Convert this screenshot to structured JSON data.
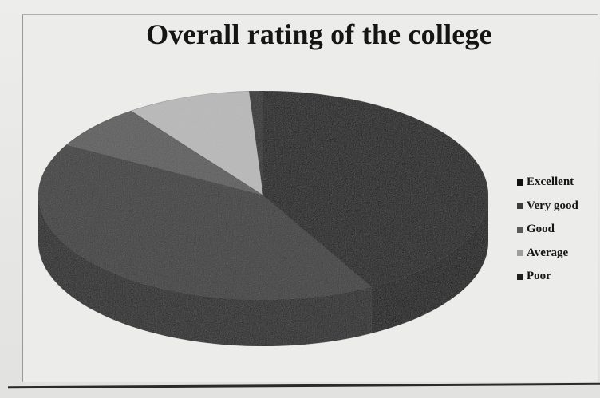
{
  "chart_data": {
    "type": "pie",
    "title": "Overall rating of the college",
    "categories": [
      "Excellent",
      "Very good",
      "Good",
      "Average",
      "Poor"
    ],
    "values": [
      42,
      41,
      7,
      9,
      1
    ],
    "legend_position": "right",
    "colors": {
      "Excellent": "#161616",
      "Very good": "#3a3a3a",
      "Good": "#5c5c5c",
      "Average": "#b9b9b9",
      "Poor": "#2b2b2b"
    },
    "legend_swatch_colors": [
      "#111111",
      "#3d3d3d",
      "#5a5a5a",
      "#9e9e9e",
      "#1e1e1e"
    ]
  }
}
